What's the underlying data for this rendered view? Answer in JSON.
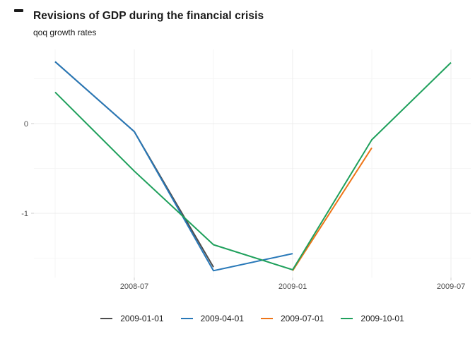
{
  "header": {
    "title": "Revisions of GDP during the financial crisis",
    "subtitle": "qoq growth rates"
  },
  "chart_data": {
    "type": "line",
    "title": "Revisions of GDP during the financial crisis",
    "subtitle": "qoq growth rates",
    "xlabel": "",
    "ylabel": "",
    "x_categories": [
      "2008-04",
      "2008-07",
      "2008-10",
      "2009-01",
      "2009-04",
      "2009-07"
    ],
    "x_major_ticks": [
      "2008-07",
      "2009-01",
      "2009-07"
    ],
    "x_minor_ticks": [
      "2008-04",
      "2008-10",
      "2009-04"
    ],
    "y_major_ticks": [
      {
        "value": 0,
        "label": "0"
      },
      {
        "value": -1,
        "label": "-1"
      }
    ],
    "y_minor_ticks": [
      0.5,
      -0.5,
      -1.5
    ],
    "ylim": [
      -1.75,
      0.83
    ],
    "grid": "on",
    "legend_position": "bottom",
    "colors": {
      "major_grid": "#ececec",
      "minor_grid": "#f6f6f6",
      "tick_mark": "#cccccc",
      "axis_text": "#4d4d4d"
    },
    "series": [
      {
        "name": "2009-01-01",
        "color": "#4d4d4d",
        "points": [
          {
            "x": "2008-04",
            "y": 0.69
          },
          {
            "x": "2008-07",
            "y": -0.09
          },
          {
            "x": "2008-10",
            "y": -1.6
          }
        ]
      },
      {
        "name": "2009-04-01",
        "color": "#2878b8",
        "points": [
          {
            "x": "2008-04",
            "y": 0.69
          },
          {
            "x": "2008-07",
            "y": -0.09
          },
          {
            "x": "2008-10",
            "y": -1.64
          },
          {
            "x": "2009-01",
            "y": -1.45
          }
        ]
      },
      {
        "name": "2009-07-01",
        "color": "#ee7518",
        "points": [
          {
            "x": "2009-01",
            "y": -1.64
          },
          {
            "x": "2009-04",
            "y": -0.27
          }
        ]
      },
      {
        "name": "2009-10-01",
        "color": "#1fa05c",
        "points": [
          {
            "x": "2008-04",
            "y": 0.35
          },
          {
            "x": "2008-07",
            "y": -0.53
          },
          {
            "x": "2008-10",
            "y": -1.35
          },
          {
            "x": "2009-01",
            "y": -1.63
          },
          {
            "x": "2009-04",
            "y": -0.18
          },
          {
            "x": "2009-07",
            "y": 0.68
          }
        ]
      }
    ]
  }
}
